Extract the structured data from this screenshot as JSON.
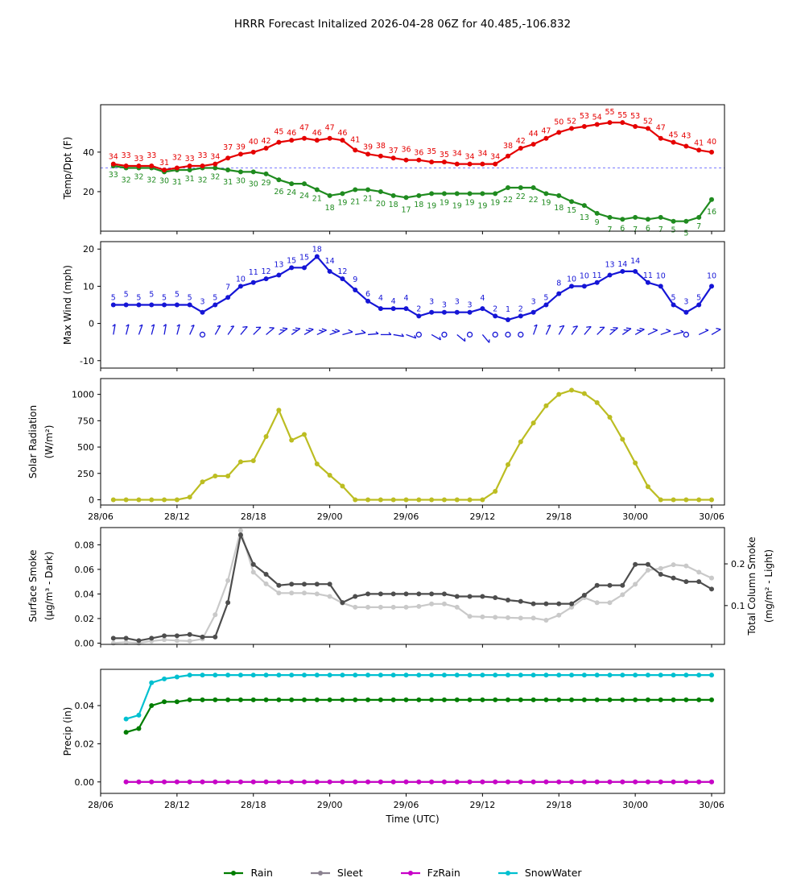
{
  "title": "HRRR Forecast Initalized 2026-04-28 06Z for 40.485,-106.832",
  "x_axis": {
    "tick_hours": [
      0,
      6,
      12,
      18,
      24,
      30,
      36,
      42,
      48
    ],
    "tick_labels": [
      "28/06",
      "28/12",
      "28/18",
      "29/00",
      "29/06",
      "29/12",
      "29/18",
      "30/00",
      "30/06"
    ],
    "label": "Time (UTC)",
    "data_start_hour": 1
  },
  "chart_data": [
    {
      "id": "temp",
      "type": "line",
      "ylabel": [
        "Temp/Dpt (F)"
      ],
      "yticks": [
        {
          "v": 20,
          "t": "20"
        },
        {
          "v": 40,
          "t": "40"
        }
      ],
      "ylim": [
        0,
        64
      ],
      "ref_line": {
        "v": 32,
        "color": "#5050ff"
      },
      "series": [
        {
          "name": "dewpoint",
          "color": "#1f8b1f",
          "label_side": "below",
          "values": [
            33,
            32,
            32,
            32,
            30,
            31,
            31,
            32,
            32,
            31,
            30,
            30,
            29,
            26,
            24,
            24,
            21,
            18,
            19,
            21,
            21,
            20,
            18,
            17,
            18,
            19,
            19,
            19,
            19,
            19,
            19,
            22,
            22,
            22,
            19,
            18,
            15,
            13,
            9,
            7,
            6,
            7,
            6,
            7,
            5,
            5,
            7,
            16
          ]
        },
        {
          "name": "temperature",
          "color": "#e50000",
          "label_side": "above",
          "values": [
            34,
            33,
            33,
            33,
            31,
            32,
            33,
            33,
            34,
            37,
            39,
            40,
            42,
            45,
            46,
            47,
            46,
            47,
            46,
            41,
            39,
            38,
            37,
            36,
            36,
            35,
            35,
            34,
            34,
            34,
            34,
            38,
            42,
            44,
            47,
            50,
            52,
            53,
            54,
            55,
            55,
            53,
            52,
            47,
            45,
            43,
            41,
            40
          ]
        }
      ]
    },
    {
      "id": "wind",
      "type": "line",
      "ylabel": [
        "Max Wind (mph)"
      ],
      "yticks": [
        {
          "v": -10,
          "t": "-10"
        },
        {
          "v": 0,
          "t": "0"
        },
        {
          "v": 10,
          "t": "10"
        },
        {
          "v": 20,
          "t": "20"
        }
      ],
      "ylim": [
        -12,
        22
      ],
      "series": [
        {
          "name": "max-wind",
          "color": "#1515d6",
          "label_side": "above",
          "values": [
            5,
            5,
            5,
            5,
            5,
            5,
            5,
            3,
            5,
            7,
            10,
            11,
            12,
            13,
            15,
            15,
            18,
            14,
            12,
            9,
            6,
            4,
            4,
            4,
            2,
            3,
            3,
            3,
            3,
            4,
            2,
            1,
            2,
            3,
            5,
            8,
            10,
            10,
            11,
            13,
            14,
            14,
            11,
            10,
            5,
            3,
            5,
            10
          ]
        }
      ],
      "barbs": {
        "y": -3,
        "color": "#1515d6",
        "directions": [
          190,
          195,
          200,
          195,
          190,
          195,
          205,
          0,
          210,
          215,
          220,
          225,
          230,
          235,
          235,
          240,
          245,
          250,
          255,
          260,
          265,
          270,
          280,
          290,
          0,
          300,
          0,
          310,
          0,
          320,
          0,
          0,
          0,
          200,
          205,
          210,
          215,
          220,
          225,
          230,
          235,
          240,
          245,
          250,
          255,
          0,
          245,
          240
        ]
      }
    },
    {
      "id": "solar",
      "type": "line",
      "ylabel": [
        "Solar Radiation",
        "(W/m²)"
      ],
      "yticks": [
        {
          "v": 0,
          "t": "0"
        },
        {
          "v": 250,
          "t": "250"
        },
        {
          "v": 500,
          "t": "500"
        },
        {
          "v": 750,
          "t": "750"
        },
        {
          "v": 1000,
          "t": "1000"
        }
      ],
      "ylim": [
        -50,
        1150
      ],
      "show_x_labels": true,
      "series": [
        {
          "name": "solar-radiation",
          "color": "#bcbd22",
          "values": [
            0,
            0,
            0,
            0,
            0,
            0,
            25,
            170,
            225,
            225,
            360,
            370,
            600,
            850,
            565,
            620,
            340,
            233,
            130,
            0,
            0,
            0,
            0,
            0,
            0,
            0,
            0,
            0,
            0,
            0,
            80,
            333,
            550,
            729,
            892,
            1000,
            1040,
            1008,
            922,
            783,
            574,
            349,
            124,
            0,
            0,
            0,
            0,
            0
          ]
        }
      ]
    },
    {
      "id": "smoke",
      "type": "line-dual-axis",
      "ylabel": [
        "Surface Smoke",
        "(µg/m³ - Dark)"
      ],
      "ylabel_right": [
        "Total Column Smoke",
        "(mg/m² - Light)"
      ],
      "yticks": [
        {
          "v": 0.0,
          "t": "0.00"
        },
        {
          "v": 0.02,
          "t": "0.02"
        },
        {
          "v": 0.04,
          "t": "0.04"
        },
        {
          "v": 0.06,
          "t": "0.06"
        },
        {
          "v": 0.08,
          "t": "0.08"
        }
      ],
      "ylim": [
        -0.001,
        0.094
      ],
      "yticks_right": [
        {
          "v": 0.1,
          "t": "0.1"
        },
        {
          "v": 0.2,
          "t": "0.2"
        }
      ],
      "ylim_right": [
        0.007,
        0.287
      ],
      "series": [
        {
          "name": "total-column-smoke",
          "color": "#c9c9c9",
          "axis": "right",
          "values": [
            0.01,
            0.012,
            0.01,
            0.015,
            0.018,
            0.016,
            0.015,
            0.02,
            0.078,
            0.16,
            0.28,
            0.18,
            0.152,
            0.13,
            0.13,
            0.13,
            0.128,
            0.122,
            0.106,
            0.096,
            0.096,
            0.096,
            0.096,
            0.096,
            0.098,
            0.104,
            0.104,
            0.096,
            0.074,
            0.073,
            0.072,
            0.071,
            0.07,
            0.07,
            0.065,
            0.077,
            0.096,
            0.119,
            0.107,
            0.107,
            0.126,
            0.151,
            0.185,
            0.189,
            0.198,
            0.195,
            0.18,
            0.166
          ]
        },
        {
          "name": "surface-smoke",
          "color": "#4d4d4d",
          "axis": "left",
          "values": [
            0.004,
            0.004,
            0.002,
            0.004,
            0.006,
            0.006,
            0.007,
            0.005,
            0.005,
            0.033,
            0.088,
            0.064,
            0.056,
            0.047,
            0.048,
            0.048,
            0.048,
            0.048,
            0.033,
            0.038,
            0.04,
            0.04,
            0.04,
            0.04,
            0.04,
            0.04,
            0.04,
            0.038,
            0.038,
            0.038,
            0.037,
            0.035,
            0.034,
            0.032,
            0.032,
            0.032,
            0.032,
            0.039,
            0.047,
            0.047,
            0.047,
            0.064,
            0.064,
            0.056,
            0.053,
            0.05,
            0.05,
            0.044
          ]
        }
      ]
    },
    {
      "id": "precip",
      "type": "line",
      "ylabel": [
        "Precip (in)"
      ],
      "yticks": [
        {
          "v": 0.0,
          "t": "0.00"
        },
        {
          "v": 0.02,
          "t": "0.02"
        },
        {
          "v": 0.04,
          "t": "0.04"
        }
      ],
      "ylim": [
        -0.006,
        0.059
      ],
      "show_x_labels": true,
      "show_x_title": true,
      "series": [
        {
          "name": "snowwater",
          "color": "#00c0d0",
          "values": [
            null,
            0.033,
            0.035,
            0.052,
            0.054,
            0.055,
            0.056,
            0.056,
            0.056,
            0.056,
            0.056,
            0.056,
            0.056,
            0.056,
            0.056,
            0.056,
            0.056,
            0.056,
            0.056,
            0.056,
            0.056,
            0.056,
            0.056,
            0.056,
            0.056,
            0.056,
            0.056,
            0.056,
            0.056,
            0.056,
            0.056,
            0.056,
            0.056,
            0.056,
            0.056,
            0.056,
            0.056,
            0.056,
            0.056,
            0.056,
            0.056,
            0.056,
            0.056,
            0.056,
            0.056,
            0.056,
            0.056,
            0.056
          ]
        },
        {
          "name": "rain",
          "color": "#007d00",
          "values": [
            null,
            0.026,
            0.028,
            0.04,
            0.042,
            0.042,
            0.043,
            0.043,
            0.043,
            0.043,
            0.043,
            0.043,
            0.043,
            0.043,
            0.043,
            0.043,
            0.043,
            0.043,
            0.043,
            0.043,
            0.043,
            0.043,
            0.043,
            0.043,
            0.043,
            0.043,
            0.043,
            0.043,
            0.043,
            0.043,
            0.043,
            0.043,
            0.043,
            0.043,
            0.043,
            0.043,
            0.043,
            0.043,
            0.043,
            0.043,
            0.043,
            0.043,
            0.043,
            0.043,
            0.043,
            0.043,
            0.043,
            0.043
          ]
        },
        {
          "name": "sleet",
          "color": "#8b8290",
          "values": [
            null,
            0,
            0,
            0,
            0,
            0,
            0,
            0,
            0,
            0,
            0,
            0,
            0,
            0,
            0,
            0,
            0,
            0,
            0,
            0,
            0,
            0,
            0,
            0,
            0,
            0,
            0,
            0,
            0,
            0,
            0,
            0,
            0,
            0,
            0,
            0,
            0,
            0,
            0,
            0,
            0,
            0,
            0,
            0,
            0,
            0,
            0,
            0
          ]
        },
        {
          "name": "fzrain",
          "color": "#c800c8",
          "values": [
            null,
            0,
            0,
            0,
            0,
            0,
            0,
            0,
            0,
            0,
            0,
            0,
            0,
            0,
            0,
            0,
            0,
            0,
            0,
            0,
            0,
            0,
            0,
            0,
            0,
            0,
            0,
            0,
            0,
            0,
            0,
            0,
            0,
            0,
            0,
            0,
            0,
            0,
            0,
            0,
            0,
            0,
            0,
            0,
            0,
            0,
            0,
            0
          ]
        }
      ]
    }
  ],
  "legend": {
    "items": [
      {
        "label": "Rain",
        "color": "#007d00"
      },
      {
        "label": "Sleet",
        "color": "#8b8290"
      },
      {
        "label": "FzRain",
        "color": "#c800c8"
      },
      {
        "label": "SnowWater",
        "color": "#00c0d0"
      }
    ]
  }
}
